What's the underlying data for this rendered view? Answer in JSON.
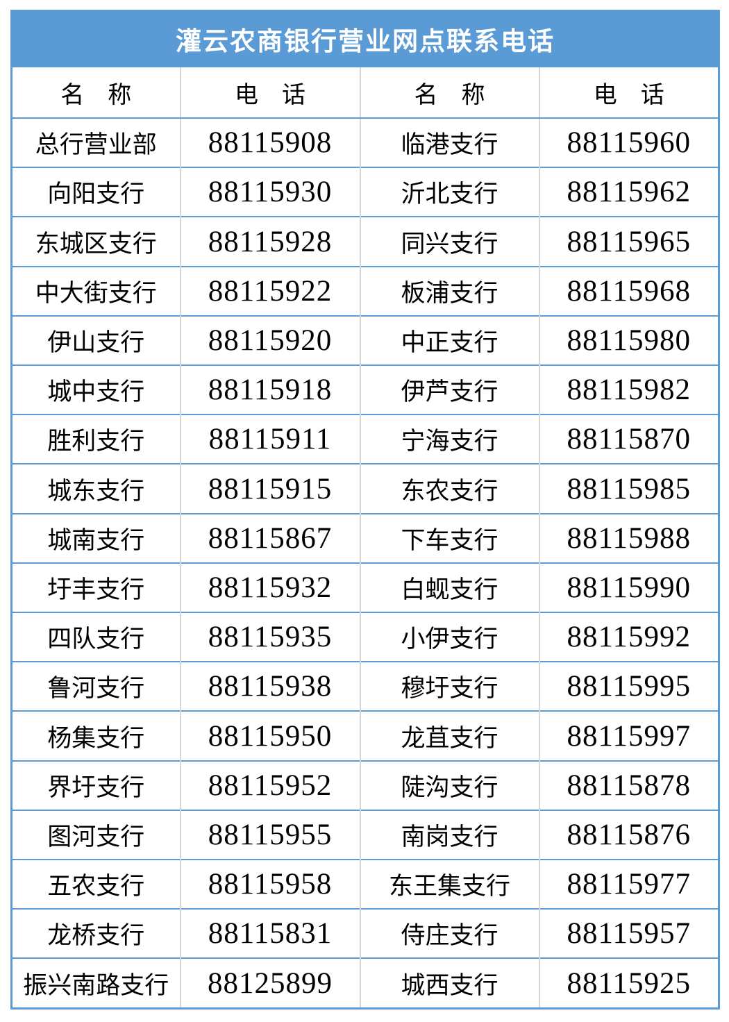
{
  "table": {
    "title": "灌云农商银行营业网点联系电话",
    "headers": [
      "名　称",
      "电　话",
      "名　称",
      "电　话"
    ],
    "rows": [
      [
        "总行营业部",
        "88115908",
        "临港支行",
        "88115960"
      ],
      [
        "向阳支行",
        "88115930",
        "沂北支行",
        "88115962"
      ],
      [
        "东城区支行",
        "88115928",
        "同兴支行",
        "88115965"
      ],
      [
        "中大街支行",
        "88115922",
        "板浦支行",
        "88115968"
      ],
      [
        "伊山支行",
        "88115920",
        "中正支行",
        "88115980"
      ],
      [
        "城中支行",
        "88115918",
        "伊芦支行",
        "88115982"
      ],
      [
        "胜利支行",
        "88115911",
        "宁海支行",
        "88115870"
      ],
      [
        "城东支行",
        "88115915",
        "东农支行",
        "88115985"
      ],
      [
        "城南支行",
        "88115867",
        "下车支行",
        "88115988"
      ],
      [
        "圩丰支行",
        "88115932",
        "白蚬支行",
        "88115990"
      ],
      [
        "四队支行",
        "88115935",
        "小伊支行",
        "88115992"
      ],
      [
        "鲁河支行",
        "88115938",
        "穆圩支行",
        "88115995"
      ],
      [
        "杨集支行",
        "88115950",
        "龙苴支行",
        "88115997"
      ],
      [
        "界圩支行",
        "88115952",
        "陡沟支行",
        "88115878"
      ],
      [
        "图河支行",
        "88115955",
        "南岗支行",
        "88115876"
      ],
      [
        "五农支行",
        "88115958",
        "东王集支行",
        "88115977"
      ],
      [
        "龙桥支行",
        "88115831",
        "侍庄支行",
        "88115957"
      ],
      [
        "振兴南路支行",
        "88125899",
        "城西支行",
        "88115925"
      ]
    ],
    "colors": {
      "header_bg": "#5B9BD5",
      "header_text": "#FFFFFF",
      "row_divider": "#5B9BD5",
      "column_divider": "#D6D6D6",
      "cell_text": "#000000"
    }
  }
}
